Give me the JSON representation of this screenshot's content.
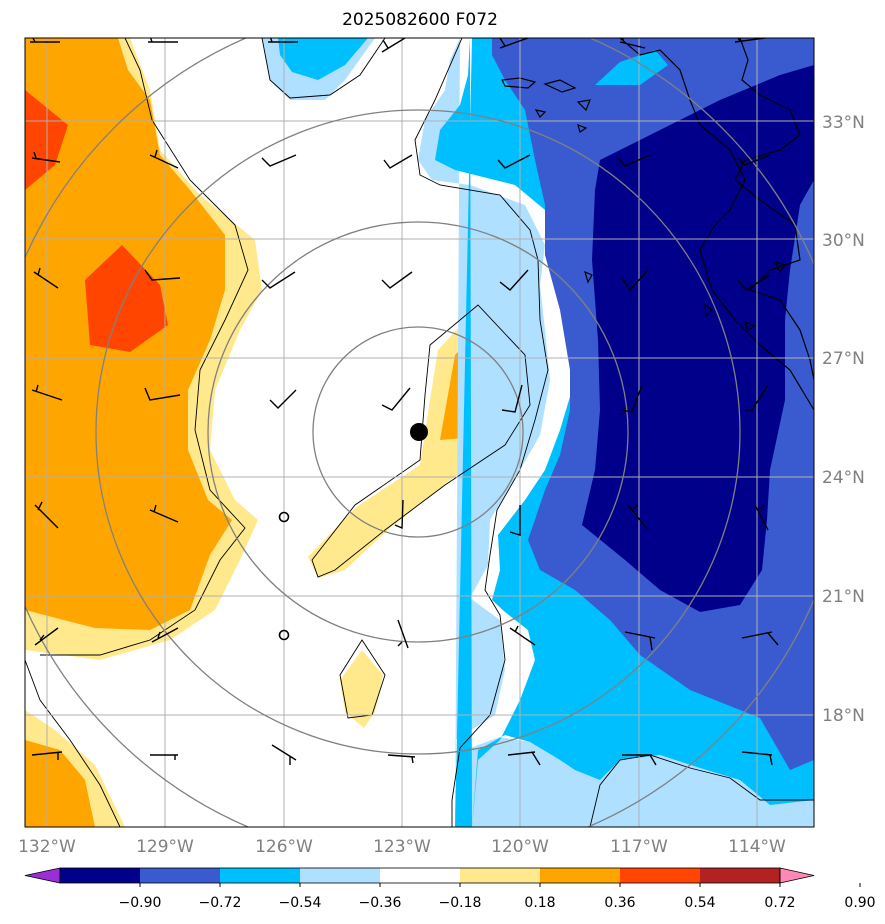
{
  "title": "2025082600 F072",
  "lon_ticks": [
    "132°W",
    "129°W",
    "126°W",
    "123°W",
    "120°W",
    "117°W",
    "114°W"
  ],
  "lat_ticks": [
    "33°N",
    "30°N",
    "27°N",
    "24°N",
    "21°N",
    "18°N"
  ],
  "colorbar": {
    "labels": [
      "−0.90",
      "−0.72",
      "−0.54",
      "−0.36",
      "−0.18",
      "0.18",
      "0.36",
      "0.54",
      "0.72",
      "0.90"
    ],
    "colors": [
      "#9a2fd6",
      "#00008b",
      "#3a5bd0",
      "#00bfff",
      "#b0e0ff",
      "#ffffff",
      "#ffe98c",
      "#ffa500",
      "#ff4500",
      "#b22222",
      "#ff88b8"
    ]
  },
  "storm_center": {
    "lon": -122.6,
    "lat": 25.2
  },
  "colors": {
    "orange": "#ffa500",
    "red_orange": "#ff4500",
    "light_yellow": "#ffe98c",
    "navy": "#00008b",
    "royal_blue": "#3a5bd0",
    "deep_sky": "#00bfff",
    "light_blue": "#b0e0ff",
    "grid": "#b0b0b0",
    "range_ring": "#808080"
  }
}
